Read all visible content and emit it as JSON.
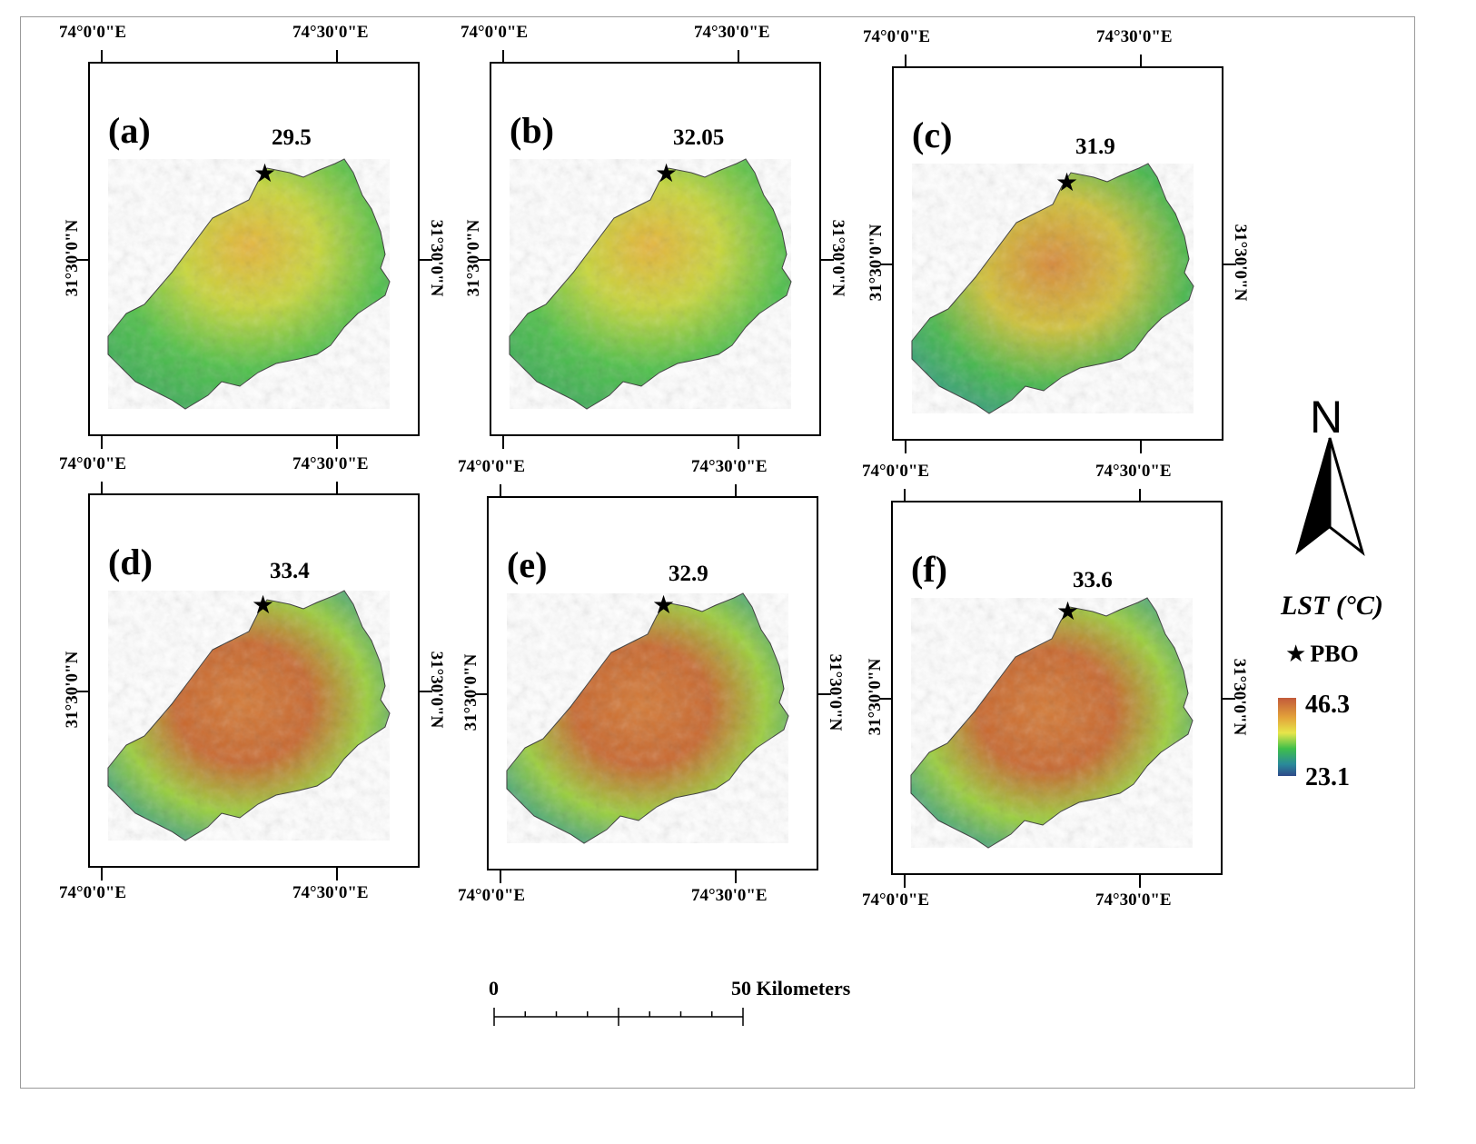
{
  "figure": {
    "lon_left": "74°0'0\"E",
    "lon_right": "74°30'0\"E",
    "lat": "31°30'0\"N"
  },
  "panels": [
    {
      "label": "(a)",
      "value": "29.5"
    },
    {
      "label": "(b)",
      "value": "32.05"
    },
    {
      "label": "(c)",
      "value": "31.9"
    },
    {
      "label": "(d)",
      "value": "33.4"
    },
    {
      "label": "(e)",
      "value": "32.9"
    },
    {
      "label": "(f)",
      "value": "33.6"
    }
  ],
  "north_arrow": {
    "letter": "N"
  },
  "legend": {
    "title": "LST (°C)",
    "marker_label": "PBO",
    "max": "46.3",
    "min": "23.1",
    "colors": [
      "#c25a3a",
      "#e3a33a",
      "#e6e64a",
      "#3fbf4a",
      "#2a8a9a",
      "#2e4a8a"
    ]
  },
  "scale": {
    "start": "0",
    "end": "50 Kilometers"
  }
}
